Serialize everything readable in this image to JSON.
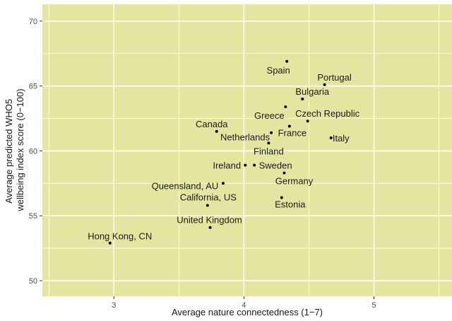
{
  "chart_data": {
    "type": "scatter",
    "xlabel": "Average nature connectedness (1−7)",
    "ylabel_lines": [
      "Average predicted WHO5",
      "wellbeing index score (0−100)"
    ],
    "xlim": [
      2.45,
      5.6
    ],
    "ylim": [
      48.8,
      71.3
    ],
    "x_ticks": [
      3,
      4,
      5
    ],
    "y_ticks": [
      50,
      55,
      60,
      65,
      70
    ],
    "grid": true,
    "colors": {
      "panel": "#e5e5a2",
      "grid": "#ffffff",
      "point": "#000000",
      "text": "#1a1a1a",
      "tick": "#4d4d4d"
    },
    "points": [
      {
        "label": "Spain",
        "x": 4.33,
        "y": 66.9
      },
      {
        "label": "Portugal",
        "x": 4.62,
        "y": 65.1
      },
      {
        "label": "Bulgaria",
        "x": 4.45,
        "y": 64.0
      },
      {
        "label": "Greece",
        "x": 4.32,
        "y": 63.4
      },
      {
        "label": "Czech Republic",
        "x": 4.49,
        "y": 62.3
      },
      {
        "label": "Canada",
        "x": 3.79,
        "y": 61.5
      },
      {
        "label": "France",
        "x": 4.35,
        "y": 61.9
      },
      {
        "label": "Netherlands",
        "x": 4.21,
        "y": 61.4
      },
      {
        "label": "Italy",
        "x": 4.67,
        "y": 61.0
      },
      {
        "label": "Finland",
        "x": 4.19,
        "y": 60.6
      },
      {
        "label": "Ireland",
        "x": 4.01,
        "y": 58.9
      },
      {
        "label": "Sweden",
        "x": 4.08,
        "y": 58.9
      },
      {
        "label": "Germany",
        "x": 4.31,
        "y": 58.3
      },
      {
        "label": "Queensland, AU",
        "x": 3.84,
        "y": 57.5
      },
      {
        "label": "California, US",
        "x": 3.72,
        "y": 55.8
      },
      {
        "label": "Estonia",
        "x": 4.29,
        "y": 56.4
      },
      {
        "label": "United Kingdom",
        "x": 3.74,
        "y": 54.1
      },
      {
        "label": "Hong Kong, CN",
        "x": 2.97,
        "y": 52.9
      }
    ]
  }
}
